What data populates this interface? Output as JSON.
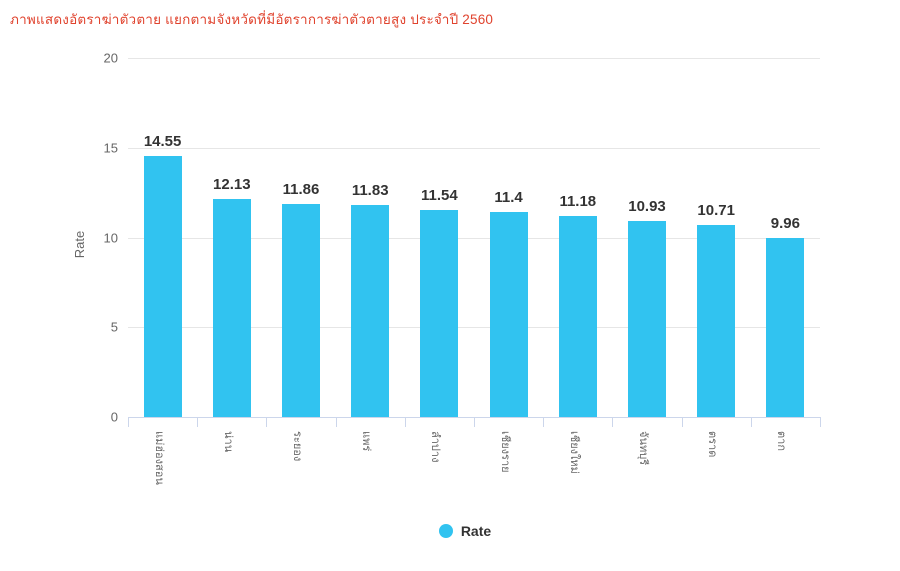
{
  "page": {
    "title": "ภาพแสดงอัตราฆ่าตัวตาย แยกตามจังหวัดที่มีอัตราการฆ่าตัวตายสูง ประจำปี 2560"
  },
  "chart_data": {
    "type": "bar",
    "title": "ภาพแสดงอัตราฆ่าตัวตาย แยกตามจังหวัดที่มีอัตราการฆ่าตัวตายสูง ประจำปี 2560",
    "categories": [
      "แม่ฮ่องสอน",
      "น่าน",
      "ระยอง",
      "แพร่",
      "ลำปาง",
      "เชียงราย",
      "เชียงใหม่",
      "จันทบุรี",
      "ตราด",
      "ตาก"
    ],
    "series": [
      {
        "name": "Rate",
        "values": [
          14.55,
          12.13,
          11.86,
          11.83,
          11.54,
          11.4,
          11.18,
          10.93,
          10.71,
          9.96
        ]
      }
    ],
    "xlabel": "",
    "ylabel": "Rate",
    "ylim": [
      0,
      20
    ],
    "yticks": [
      0,
      5,
      10,
      15,
      20
    ],
    "grid": true,
    "data_labels": true,
    "legend": {
      "position": "bottom",
      "items": [
        {
          "label": "Rate",
          "color": "#31c3f0"
        }
      ]
    },
    "colors": {
      "bar": "#31c3f0",
      "title": "#e0432e",
      "grid": "#e6e6e6",
      "axis": "#ccd6eb",
      "tick_text": "#666666",
      "value_label": "#333333"
    }
  }
}
